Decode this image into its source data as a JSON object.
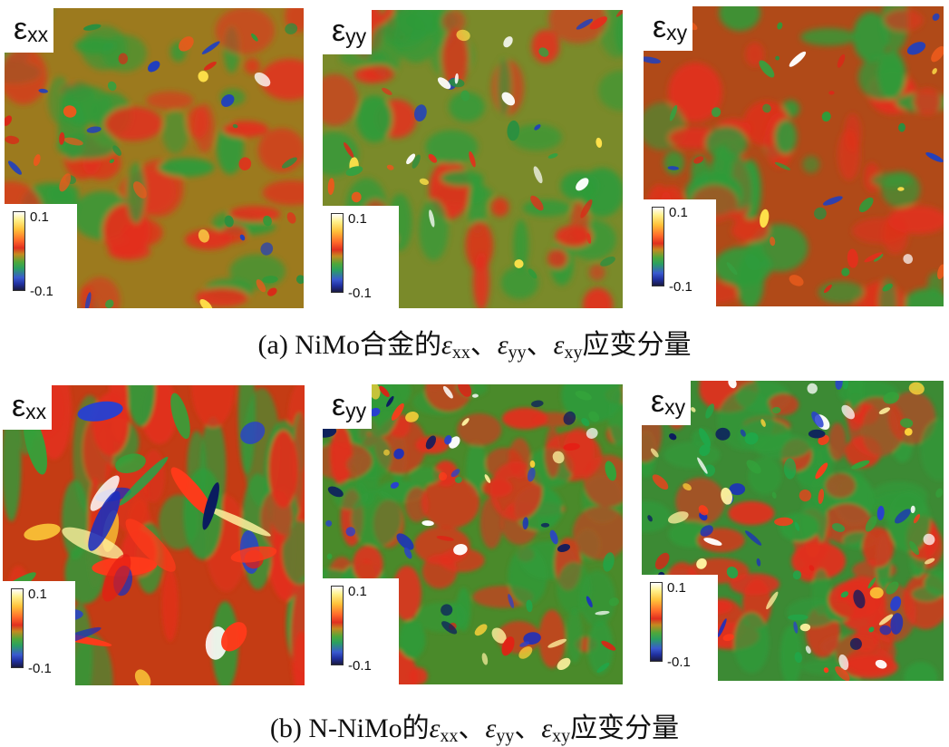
{
  "figure": {
    "panels": [
      {
        "id": "a-xx",
        "label_sym": "ε",
        "label_sub": "xx",
        "tick_max": "0.1",
        "tick_min": "-0.1",
        "base": "#9c7a1e",
        "seed": 11,
        "density": 0.55,
        "blobs": "streak",
        "contrast": "low"
      },
      {
        "id": "a-yy",
        "label_sym": "ε",
        "label_sub": "yy",
        "tick_max": "0.1",
        "tick_min": "-0.1",
        "base": "#7a8a2a",
        "seed": 23,
        "density": 0.55,
        "blobs": "streak",
        "contrast": "low"
      },
      {
        "id": "a-xy",
        "label_sym": "ε",
        "label_sub": "xy",
        "tick_max": "0.1",
        "tick_min": "-0.1",
        "base": "#b04a18",
        "seed": 37,
        "density": 0.55,
        "blobs": "streak",
        "contrast": "low"
      },
      {
        "id": "b-xx",
        "label_sym": "ε",
        "label_sub": "xx",
        "tick_max": "0.1",
        "tick_min": "-0.1",
        "base": "#c43c14",
        "seed": 51,
        "density": 0.4,
        "blobs": "vertical",
        "contrast": "high"
      },
      {
        "id": "b-yy",
        "label_sym": "ε",
        "label_sub": "yy",
        "tick_max": "0.1",
        "tick_min": "-0.1",
        "base": "#4a8a2a",
        "seed": 67,
        "density": 1.0,
        "blobs": "mixed",
        "contrast": "high"
      },
      {
        "id": "b-xy",
        "label_sym": "ε",
        "label_sub": "xy",
        "tick_max": "0.1",
        "tick_min": "-0.1",
        "base": "#3c8a34",
        "seed": 83,
        "density": 1.2,
        "blobs": "mixed",
        "contrast": "high"
      }
    ],
    "captions": [
      {
        "prefix": "(a) NiMo合金的",
        "s1": "xx",
        "s2": "yy",
        "s3": "xy",
        "sep": "、",
        "suffix": "应变分量"
      },
      {
        "prefix": "(b) N-NiMo的",
        "s1": "xx",
        "s2": "yy",
        "s3": "xy",
        "sep": "、",
        "suffix": "应变分量"
      }
    ],
    "symbol": "ε"
  }
}
